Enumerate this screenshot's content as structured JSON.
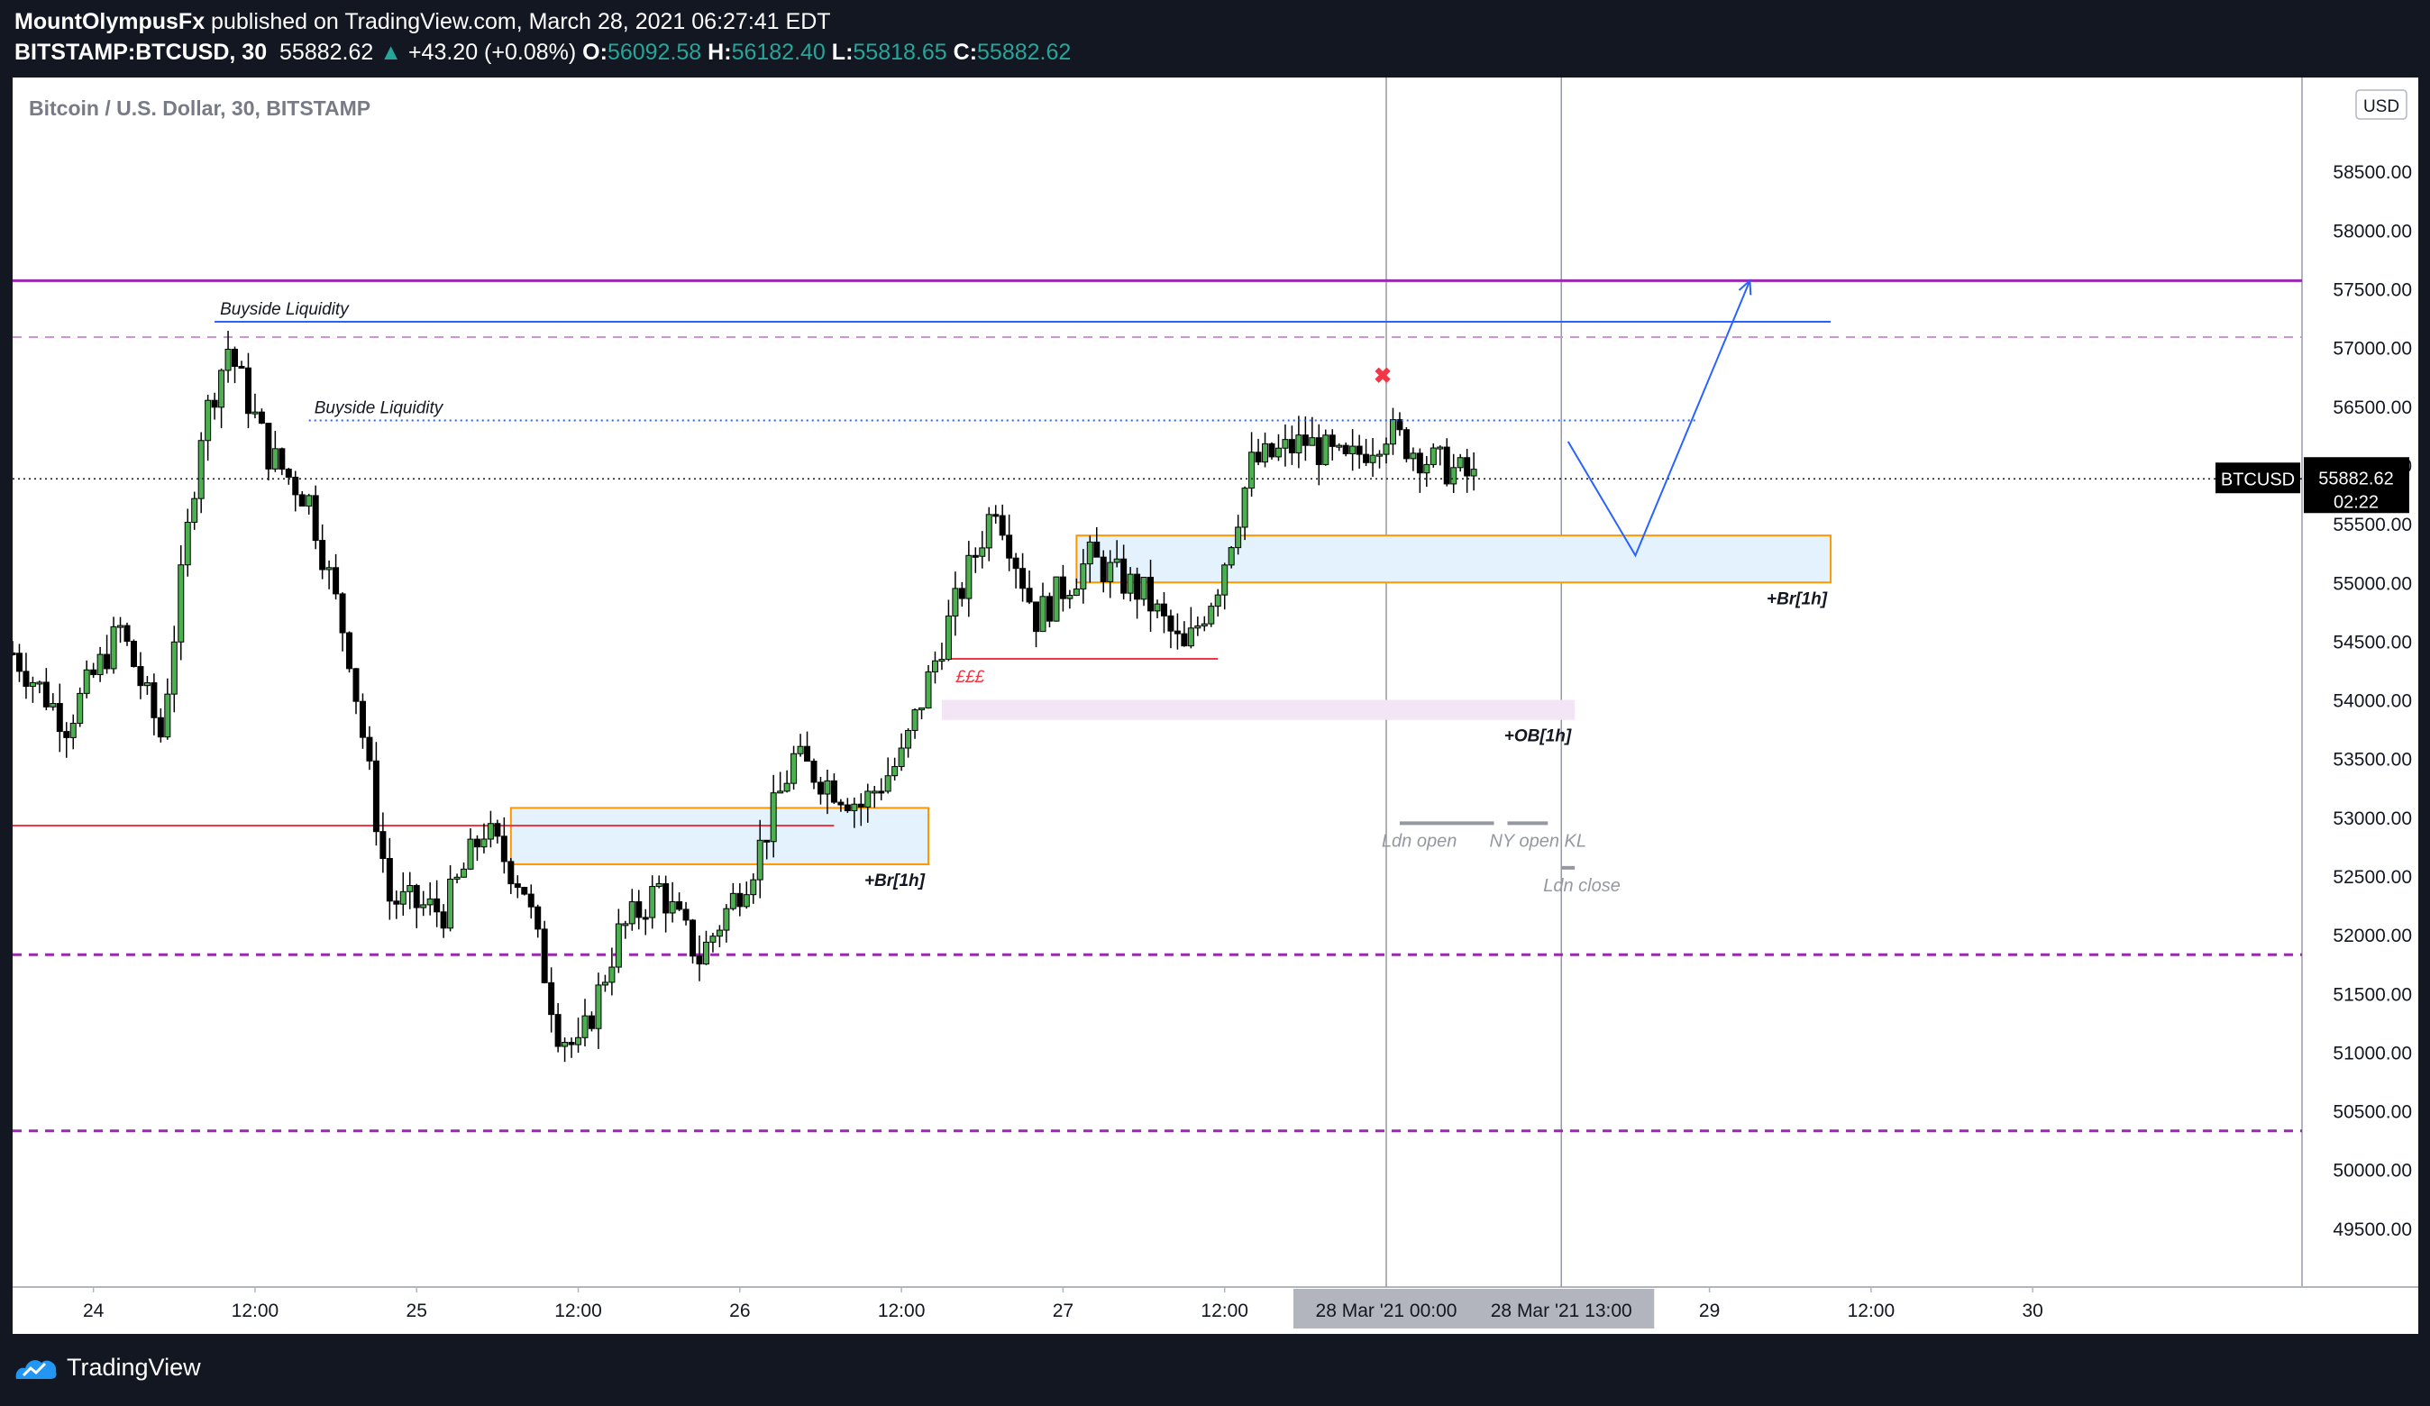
{
  "header": {
    "author": "MountOlympusFx",
    "published": " published on TradingView.com, March 28, 2021 06:27:41 EDT",
    "symbol": "BITSTAMP:BTCUSD, 30",
    "last": "55882.62",
    "change": "+43.20 (+0.08%)",
    "o_label": "O:",
    "o": "56092.58",
    "h_label": "H:",
    "h": "56182.40",
    "l_label": "L:",
    "l": "55818.65",
    "c_label": "C:",
    "c": "55882.62"
  },
  "footer": {
    "brand": "TradingView"
  },
  "colors": {
    "up": "#4caf50",
    "down": "#000000",
    "purple": "#9c27b0",
    "blue": "#2962ff",
    "red": "#f23645",
    "orange": "#ff9800",
    "zone": "#e3f2fd"
  },
  "chart_data": {
    "type": "candlestick",
    "title": "Bitcoin / U.S. Dollar, 30, BITSTAMP",
    "currency_badge": "USD",
    "ylim": [
      49000,
      59300
    ],
    "y_ticks": [
      49500,
      50000,
      50500,
      51000,
      51500,
      52000,
      52500,
      53000,
      53500,
      54000,
      54500,
      55000,
      55500,
      56000,
      56500,
      57000,
      57500,
      58000,
      58500
    ],
    "y_tick_labels": [
      "49500.00",
      "50000.00",
      "50500.00",
      "51000.00",
      "51500.00",
      "52000.00",
      "52500.00",
      "53000.00",
      "53500.00",
      "54000.00",
      "54500.00",
      "55000.00",
      "55500.00",
      "56000.00",
      "56500.00",
      "57000.00",
      "57500.00",
      "58000.00",
      "58500.00"
    ],
    "x_range": [
      "2021-03-23T18:00",
      "2021-03-30T20:00"
    ],
    "x_ticks": [
      {
        "t": "2021-03-24T00:00",
        "label": "24"
      },
      {
        "t": "2021-03-24T12:00",
        "label": "12:00"
      },
      {
        "t": "2021-03-25T00:00",
        "label": "25"
      },
      {
        "t": "2021-03-25T12:00",
        "label": "12:00"
      },
      {
        "t": "2021-03-26T00:00",
        "label": "26"
      },
      {
        "t": "2021-03-26T12:00",
        "label": "12:00"
      },
      {
        "t": "2021-03-27T00:00",
        "label": "27"
      },
      {
        "t": "2021-03-27T12:00",
        "label": "12:00"
      },
      {
        "t": "2021-03-29T00:00",
        "label": "29"
      },
      {
        "t": "2021-03-29T12:00",
        "label": "12:00"
      },
      {
        "t": "2021-03-30T00:00",
        "label": "30"
      }
    ],
    "x_highlight": [
      {
        "t": "2021-03-28T00:00",
        "label": "28 Mar '21   00:00"
      },
      {
        "t": "2021-03-28T13:00",
        "label": "28 Mar '21   13:00"
      }
    ],
    "price_label": {
      "name": "BTCUSD",
      "value": "55882.62",
      "countdown": "02:22"
    },
    "candle_anchors": [
      [
        "2021-03-23T18:00",
        54400
      ],
      [
        "2021-03-23T22:00",
        53800
      ],
      [
        "2021-03-24T02:00",
        54600
      ],
      [
        "2021-03-24T05:00",
        53700
      ],
      [
        "2021-03-24T08:00",
        56300
      ],
      [
        "2021-03-24T10:00",
        57000
      ],
      [
        "2021-03-24T13:00",
        56100
      ],
      [
        "2021-03-24T16:00",
        55700
      ],
      [
        "2021-03-24T19:00",
        54400
      ],
      [
        "2021-03-24T22:00",
        52300
      ],
      [
        "2021-03-25T02:00",
        52200
      ],
      [
        "2021-03-25T05:00",
        52900
      ],
      [
        "2021-03-25T08:00",
        52400
      ],
      [
        "2021-03-25T10:30",
        51200
      ],
      [
        "2021-03-25T12:00",
        51000
      ],
      [
        "2021-03-25T15:00",
        52000
      ],
      [
        "2021-03-25T18:00",
        52400
      ],
      [
        "2021-03-25T21:00",
        51800
      ],
      [
        "2021-03-26T01:00",
        52600
      ],
      [
        "2021-03-26T04:00",
        53500
      ],
      [
        "2021-03-26T09:00",
        53100
      ],
      [
        "2021-03-26T12:00",
        53500
      ],
      [
        "2021-03-26T15:00",
        54500
      ],
      [
        "2021-03-26T19:00",
        55700
      ],
      [
        "2021-03-26T22:00",
        54700
      ],
      [
        "2021-03-27T02:00",
        55200
      ],
      [
        "2021-03-27T06:00",
        54900
      ],
      [
        "2021-03-27T09:00",
        54400
      ],
      [
        "2021-03-27T11:30",
        55000
      ],
      [
        "2021-03-27T14:00",
        56000
      ],
      [
        "2021-03-27T18:00",
        56200
      ],
      [
        "2021-03-27T21:00",
        56000
      ],
      [
        "2021-03-28T00:00",
        56300
      ],
      [
        "2021-03-28T03:00",
        56050
      ],
      [
        "2021-03-28T06:30",
        55880
      ]
    ],
    "levels": [
      {
        "price": 57570,
        "color": "#9c27b0",
        "style": "solid",
        "width": 3
      },
      {
        "price": 57090,
        "color": "#ce93d8",
        "style": "dashed",
        "width": 2
      },
      {
        "price": 51830,
        "color": "#9c27b0",
        "style": "dashed",
        "width": 3
      },
      {
        "price": 50330,
        "color": "#9c27b0",
        "style": "dashed",
        "width": 3
      }
    ],
    "last_price_line": 55882.62,
    "buyside_liquidity": [
      {
        "label": "Buyside Liquidity",
        "price": 57220,
        "from": "2021-03-24T09:00",
        "to": "2021-03-29T09:00",
        "style": "solid"
      },
      {
        "label": "Buyside Liquidity",
        "price": 56380,
        "from": "2021-03-24T16:00",
        "to": "2021-03-28T23:00",
        "style": "dotted"
      }
    ],
    "red_lines": [
      {
        "price": 52930,
        "from": "2021-03-23T18:00",
        "to": "2021-03-26T07:00",
        "label": ""
      },
      {
        "price": 54350,
        "from": "2021-03-26T15:30",
        "to": "2021-03-27T11:30",
        "label": "£££"
      }
    ],
    "zones": [
      {
        "label": "+Br[1h]",
        "top": 53080,
        "bottom": 52600,
        "from": "2021-03-25T07:00",
        "to": "2021-03-26T14:00",
        "fill": "#e3f2fd",
        "border": "#ff9800"
      },
      {
        "label": "+Br[1h]",
        "top": 55400,
        "bottom": 55000,
        "from": "2021-03-27T01:00",
        "to": "2021-03-29T09:00",
        "fill": "#e3f2fd",
        "border": "#ff9800"
      },
      {
        "label": "+OB[1h]",
        "top": 54000,
        "bottom": 53830,
        "from": "2021-03-26T15:00",
        "to": "2021-03-28T14:00",
        "fill": "#f3e5f5",
        "border": "none"
      }
    ],
    "sessions": [
      {
        "label": "Ldn open",
        "price": 52950,
        "from": "2021-03-28T01:00",
        "to": "2021-03-28T08:00"
      },
      {
        "label": "NY open KL",
        "price": 52950,
        "from": "2021-03-28T09:00",
        "to": "2021-03-28T12:00"
      },
      {
        "label": "Ldn close",
        "price": 52570,
        "from": "2021-03-28T13:00",
        "to": "2021-03-28T14:00"
      }
    ],
    "projection": [
      [
        "2021-03-28T13:30",
        56200
      ],
      [
        "2021-03-28T18:30",
        55230
      ],
      [
        "2021-03-29T03:00",
        57570
      ]
    ],
    "marker": {
      "t": "2021-03-28T00:00",
      "price": 56760,
      "symbol": "✖"
    }
  }
}
